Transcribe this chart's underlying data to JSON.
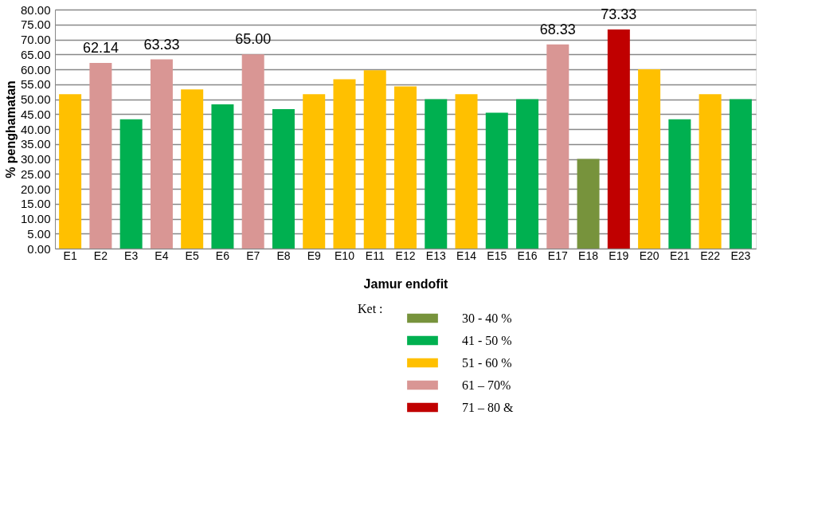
{
  "chart_data": {
    "type": "bar",
    "xlabel": "Jamur endofit",
    "ylabel": "% penghamatan",
    "legend_title": "Ket :",
    "legend": "bottom",
    "grid": "y",
    "categories": [
      "E1",
      "E2",
      "E3",
      "E4",
      "E5",
      "E6",
      "E7",
      "E8",
      "E9",
      "E10",
      "E11",
      "E12",
      "E13",
      "E14",
      "E15",
      "E16",
      "E17",
      "E18",
      "E19",
      "E20",
      "E21",
      "E22",
      "E23"
    ],
    "ylim": [
      0,
      80
    ],
    "yticks": [
      {
        "value": 0,
        "label": "0.00"
      },
      {
        "value": 5,
        "label": "5.00"
      },
      {
        "value": 10,
        "label": "10.00"
      },
      {
        "value": 15,
        "label": "15.00"
      },
      {
        "value": 20,
        "label": "20.00"
      },
      {
        "value": 25,
        "label": "25.00"
      },
      {
        "value": 30,
        "label": "30.00"
      },
      {
        "value": 35,
        "label": "35.00"
      },
      {
        "value": 40,
        "label": "40.00"
      },
      {
        "value": 45,
        "label": "45.00"
      },
      {
        "value": 50,
        "label": "50.00"
      },
      {
        "value": 55,
        "label": "55.00"
      },
      {
        "value": 60,
        "label": "60.00"
      },
      {
        "value": 65,
        "label": "65.00"
      },
      {
        "value": 70,
        "label": "70.00"
      },
      {
        "value": 75,
        "label": "75.00"
      },
      {
        "value": 80,
        "label": "80.00"
      }
    ],
    "series": [
      {
        "name": "30 - 40 %",
        "color": "#77933c",
        "values": [
          null,
          null,
          null,
          null,
          null,
          null,
          null,
          null,
          null,
          null,
          null,
          null,
          null,
          null,
          null,
          null,
          null,
          30,
          null,
          null,
          null,
          null,
          null
        ]
      },
      {
        "name": "41 - 50 %",
        "color": "#00b050",
        "values": [
          null,
          null,
          43.3,
          null,
          null,
          48.3,
          null,
          46.7,
          null,
          null,
          null,
          null,
          50,
          null,
          45.5,
          50,
          null,
          null,
          null,
          null,
          43.3,
          null,
          50
        ]
      },
      {
        "name": "51 - 60 %",
        "color": "#ffc000",
        "values": [
          51.7,
          null,
          null,
          null,
          53.3,
          null,
          null,
          null,
          51.7,
          56.7,
          59.7,
          54.3,
          null,
          51.7,
          null,
          null,
          null,
          null,
          null,
          60,
          null,
          51.7,
          null
        ]
      },
      {
        "name": "61 – 70%",
        "color": "#d99694",
        "values": [
          null,
          62.14,
          null,
          63.33,
          null,
          null,
          65.0,
          null,
          null,
          null,
          null,
          null,
          null,
          null,
          null,
          null,
          68.33,
          null,
          null,
          null,
          null,
          null,
          null
        ],
        "value_labels": [
          null,
          "62.14",
          null,
          "63.33",
          null,
          null,
          "65.00",
          null,
          null,
          null,
          null,
          null,
          null,
          null,
          null,
          null,
          "68.33",
          null,
          null,
          null,
          null,
          null,
          null
        ]
      },
      {
        "name": "71 – 80 &",
        "color": "#c00000",
        "values": [
          null,
          null,
          null,
          null,
          null,
          null,
          null,
          null,
          null,
          null,
          null,
          null,
          null,
          null,
          null,
          null,
          null,
          null,
          73.33,
          null,
          null,
          null,
          null
        ],
        "value_labels": [
          null,
          null,
          null,
          null,
          null,
          null,
          null,
          null,
          null,
          null,
          null,
          null,
          null,
          null,
          null,
          null,
          null,
          null,
          "73.33",
          null,
          null,
          null,
          null
        ]
      }
    ]
  }
}
